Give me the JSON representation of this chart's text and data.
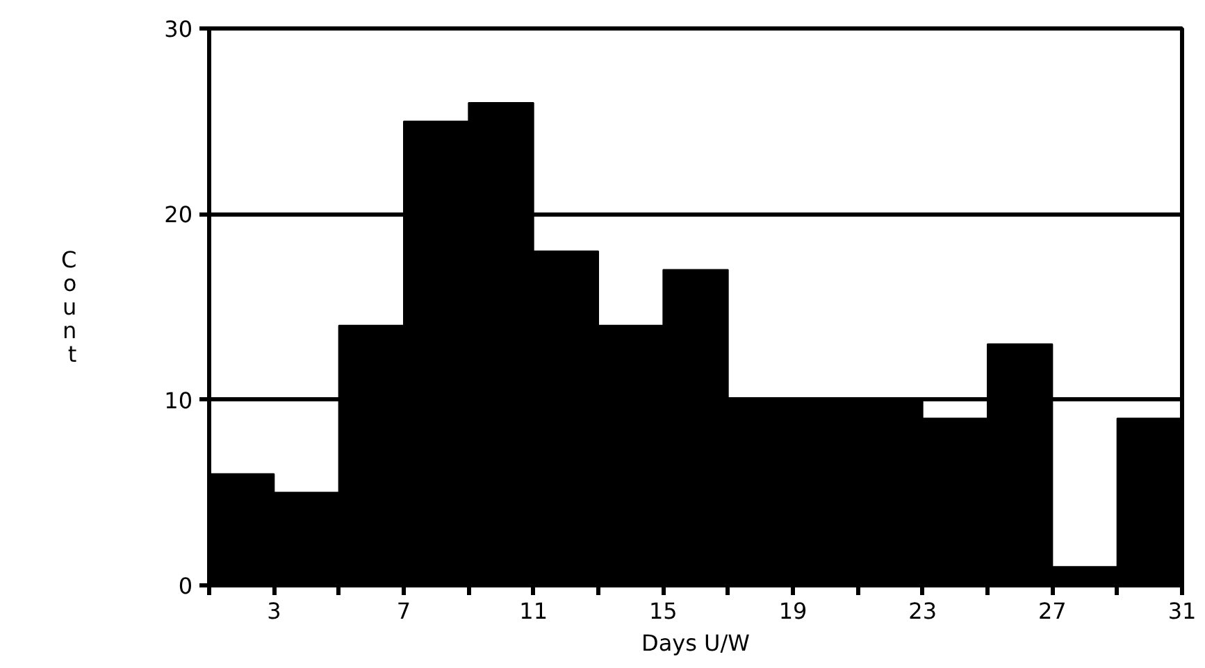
{
  "chart_data": {
    "type": "histogram",
    "xlabel": "Days U/W",
    "ylabel": "Count",
    "bins": [
      1,
      3,
      5,
      7,
      9,
      11,
      13,
      15,
      17,
      19,
      21,
      23,
      25,
      27,
      29,
      31
    ],
    "values": [
      6,
      5,
      14,
      25,
      26,
      18,
      14,
      17,
      10,
      10,
      10,
      9,
      13,
      1,
      9
    ],
    "color": "#000000",
    "xlim": [
      1,
      31
    ],
    "xticks": [
      {
        "value": 1,
        "label": null
      },
      3,
      {
        "value": 5,
        "label": null
      },
      7,
      {
        "value": 9,
        "label": null
      },
      11,
      {
        "value": 13,
        "label": null
      },
      15,
      {
        "value": 17,
        "label": null
      },
      19,
      {
        "value": 21,
        "label": null
      },
      23,
      {
        "value": 25,
        "label": null
      },
      27,
      {
        "value": 29,
        "label": null
      },
      31
    ],
    "ylim": [
      0,
      30
    ],
    "yticks": [
      0,
      10,
      20,
      30
    ],
    "grid": "y"
  }
}
